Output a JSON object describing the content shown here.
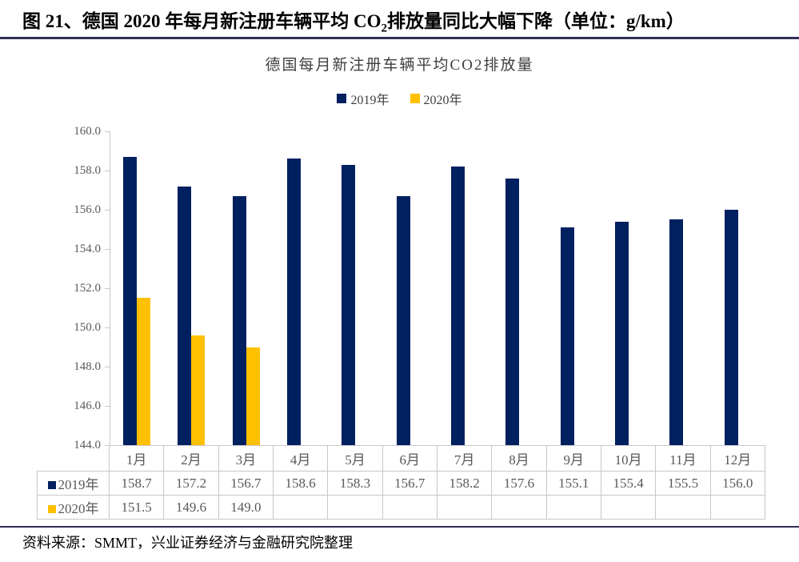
{
  "header": {
    "title_prefix": "图  21、德国 2020 年每月新注册车辆平均 CO",
    "title_sub": "2",
    "title_suffix": "排放量同比大幅下降（单位：g/km）"
  },
  "chart_data": {
    "type": "bar",
    "title": "德国每月新注册车辆平均CO2排放量",
    "categories": [
      "1月",
      "2月",
      "3月",
      "4月",
      "5月",
      "6月",
      "7月",
      "8月",
      "9月",
      "10月",
      "11月",
      "12月"
    ],
    "series": [
      {
        "name": "2019年",
        "color": "#002060",
        "values": [
          158.7,
          157.2,
          156.7,
          158.6,
          158.3,
          156.7,
          158.2,
          157.6,
          155.1,
          155.4,
          155.5,
          156.0
        ]
      },
      {
        "name": "2020年",
        "color": "#FFC000",
        "values": [
          151.5,
          149.6,
          149.0,
          null,
          null,
          null,
          null,
          null,
          null,
          null,
          null,
          null
        ]
      }
    ],
    "xlabel": "",
    "ylabel": "",
    "ylim": [
      144.0,
      160.0
    ],
    "ytick_step": 2.0,
    "ytick_format_decimals": 1,
    "grid": false,
    "legend_position": "top",
    "data_table_shown": true
  },
  "footer": {
    "source": "资料来源：SMMT，兴业证券经济与金融研究院整理"
  }
}
